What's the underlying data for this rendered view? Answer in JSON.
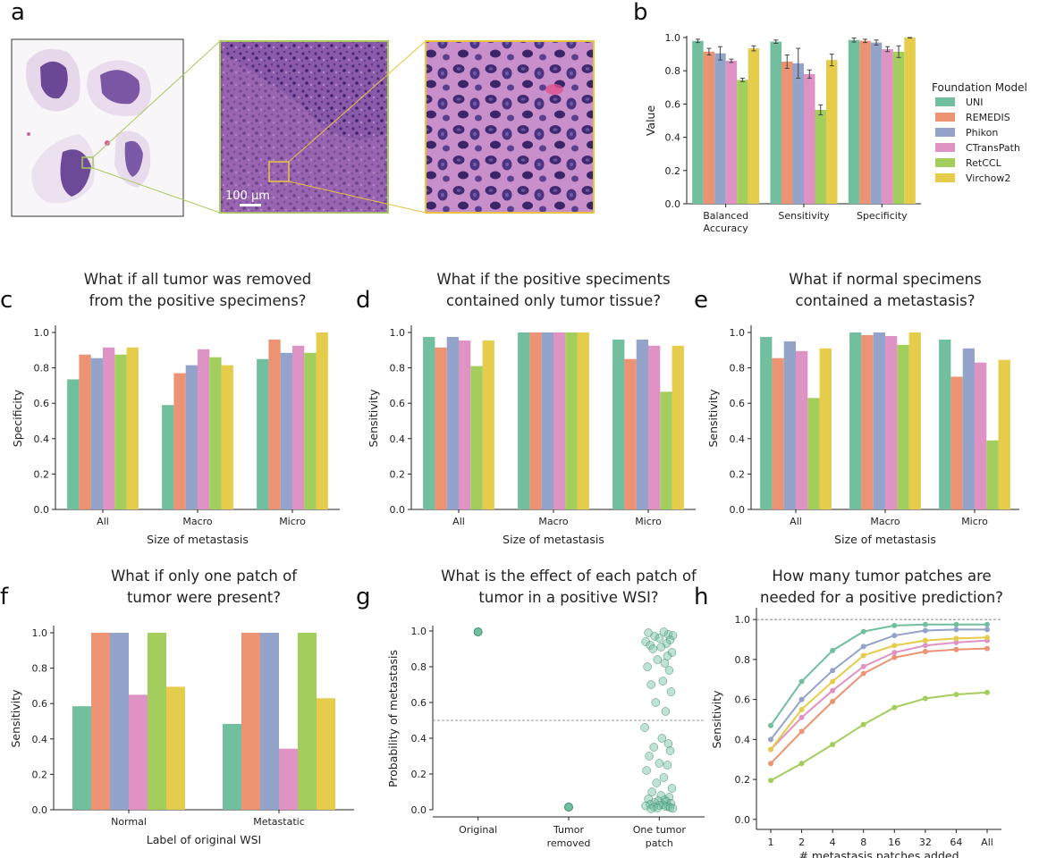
{
  "panel_labels": {
    "a": "a",
    "b": "b",
    "c": "c",
    "d": "d",
    "e": "e",
    "f": "f",
    "g": "g",
    "h": "h"
  },
  "colors": {
    "UNI": "#72bfa0",
    "REMEDIS": "#eb9373",
    "Phikon": "#93a3c9",
    "CTransPath": "#df93c5",
    "RetCCL": "#a3cd5c",
    "Virchow2": "#e6cc4b",
    "tissue_inset_border": "#a8c95e",
    "zoom_inset_border": "#e8c441"
  },
  "histology": {
    "scale_bar_label": "100 µm"
  },
  "legend": {
    "title": "Foundation Model",
    "entries": [
      "UNI",
      "REMEDIS",
      "Phikon",
      "CTransPath",
      "RetCCL",
      "Virchow2"
    ]
  },
  "chart_data": [
    {
      "id": "b",
      "type": "bar",
      "title": "",
      "categories": [
        "Balanced Accuracy",
        "Sensitivity",
        "Specificity"
      ],
      "xlabel": "",
      "ylabel": "Value",
      "ylim": [
        0,
        1.0
      ],
      "yticks": [
        "0.0",
        "0.2",
        "0.4",
        "0.6",
        "0.8",
        "1.0"
      ],
      "series": [
        {
          "name": "UNI",
          "values": [
            0.98,
            0.975,
            0.985
          ],
          "errors": [
            0.01,
            0.01,
            0.012
          ]
        },
        {
          "name": "REMEDIS",
          "values": [
            0.915,
            0.855,
            0.98
          ],
          "errors": [
            0.02,
            0.04,
            0.01
          ]
        },
        {
          "name": "Phikon",
          "values": [
            0.905,
            0.845,
            0.97
          ],
          "errors": [
            0.04,
            0.09,
            0.015
          ]
        },
        {
          "name": "CTransPath",
          "values": [
            0.86,
            0.78,
            0.93
          ],
          "errors": [
            0.01,
            0.025,
            0.015
          ]
        },
        {
          "name": "RetCCL",
          "values": [
            0.745,
            0.565,
            0.915
          ],
          "errors": [
            0.01,
            0.03,
            0.035
          ]
        },
        {
          "name": "Virchow2",
          "values": [
            0.935,
            0.865,
            1.0
          ],
          "errors": [
            0.015,
            0.035,
            0.003
          ]
        }
      ]
    },
    {
      "id": "c",
      "type": "bar",
      "title_lines": [
        "What if all tumor was removed",
        "from the positive specimens?"
      ],
      "categories": [
        "All",
        "Macro",
        "Micro"
      ],
      "xlabel": "Size of metastasis",
      "ylabel": "Specificity",
      "ylim": [
        0,
        1.0
      ],
      "yticks": [
        "0.0",
        "0.2",
        "0.4",
        "0.6",
        "0.8",
        "1.0"
      ],
      "series": [
        {
          "name": "UNI",
          "values": [
            0.735,
            0.59,
            0.85
          ]
        },
        {
          "name": "REMEDIS",
          "values": [
            0.875,
            0.77,
            0.96
          ]
        },
        {
          "name": "Phikon",
          "values": [
            0.855,
            0.815,
            0.885
          ]
        },
        {
          "name": "CTransPath",
          "values": [
            0.915,
            0.905,
            0.925
          ]
        },
        {
          "name": "RetCCL",
          "values": [
            0.875,
            0.86,
            0.885
          ]
        },
        {
          "name": "Virchow2",
          "values": [
            0.915,
            0.815,
            1.0
          ]
        }
      ]
    },
    {
      "id": "d",
      "type": "bar",
      "title_lines": [
        "What if the positive speciments",
        "contained only tumor tissue?"
      ],
      "categories": [
        "All",
        "Macro",
        "Micro"
      ],
      "xlabel": "Size of metastasis",
      "ylabel": "Sensitivity",
      "ylim": [
        0,
        1.0
      ],
      "yticks": [
        "0.0",
        "0.2",
        "0.4",
        "0.6",
        "0.8",
        "1.0"
      ],
      "series": [
        {
          "name": "UNI",
          "values": [
            0.975,
            1.0,
            0.96
          ]
        },
        {
          "name": "REMEDIS",
          "values": [
            0.915,
            1.0,
            0.85
          ]
        },
        {
          "name": "Phikon",
          "values": [
            0.975,
            1.0,
            0.96
          ]
        },
        {
          "name": "CTransPath",
          "values": [
            0.955,
            1.0,
            0.925
          ]
        },
        {
          "name": "RetCCL",
          "values": [
            0.81,
            1.0,
            0.665
          ]
        },
        {
          "name": "Virchow2",
          "values": [
            0.955,
            1.0,
            0.925
          ]
        }
      ]
    },
    {
      "id": "e",
      "type": "bar",
      "title_lines": [
        "What if normal specimens",
        "contained a metastasis?"
      ],
      "categories": [
        "All",
        "Macro",
        "Micro"
      ],
      "xlabel": "Size of metastasis",
      "ylabel": "Sensitivity",
      "ylim": [
        0,
        1.0
      ],
      "yticks": [
        "0.0",
        "0.2",
        "0.4",
        "0.6",
        "0.8",
        "1.0"
      ],
      "series": [
        {
          "name": "UNI",
          "values": [
            0.975,
            1.0,
            0.96
          ]
        },
        {
          "name": "REMEDIS",
          "values": [
            0.855,
            0.985,
            0.75
          ]
        },
        {
          "name": "Phikon",
          "values": [
            0.95,
            1.0,
            0.91
          ]
        },
        {
          "name": "CTransPath",
          "values": [
            0.895,
            0.98,
            0.83
          ]
        },
        {
          "name": "RetCCL",
          "values": [
            0.63,
            0.93,
            0.39
          ]
        },
        {
          "name": "Virchow2",
          "values": [
            0.91,
            1.0,
            0.845
          ]
        }
      ]
    },
    {
      "id": "f",
      "type": "bar",
      "title_lines": [
        "What if only one patch of",
        "tumor were present?"
      ],
      "categories": [
        "Normal",
        "Metastatic"
      ],
      "xlabel": "Label of original WSI",
      "ylabel": "Sensitivity",
      "ylim": [
        0,
        1.0
      ],
      "yticks": [
        "0.0",
        "0.2",
        "0.4",
        "0.6",
        "0.8",
        "1.0"
      ],
      "series": [
        {
          "name": "UNI",
          "values": [
            0.585,
            0.485
          ]
        },
        {
          "name": "REMEDIS",
          "values": [
            1.0,
            1.0
          ]
        },
        {
          "name": "Phikon",
          "values": [
            1.0,
            1.0
          ]
        },
        {
          "name": "CTransPath",
          "values": [
            0.65,
            0.345
          ]
        },
        {
          "name": "RetCCL",
          "values": [
            1.0,
            1.0
          ]
        },
        {
          "name": "Virchow2",
          "values": [
            0.695,
            0.63
          ]
        }
      ]
    },
    {
      "id": "g",
      "type": "scatter",
      "title_lines": [
        "What is the effect of each patch of",
        "tumor in a positive WSI?"
      ],
      "categories": [
        "Original",
        "Tumor removed",
        "One tumor patch"
      ],
      "category_lines": [
        [
          "Original"
        ],
        [
          "Tumor",
          "removed"
        ],
        [
          "One tumor",
          "patch"
        ]
      ],
      "xlabel": "",
      "ylabel": "Probability of metastasis",
      "ylim": [
        0,
        1.0
      ],
      "yticks": [
        "0.0",
        "0.2",
        "0.4",
        "0.6",
        "0.8",
        "1.0"
      ],
      "threshold": 0.5,
      "points": [
        {
          "category": "Original",
          "jitter": [
            0
          ],
          "y": [
            0.995
          ]
        },
        {
          "category": "Tumor removed",
          "jitter": [
            0
          ],
          "y": [
            0.015
          ]
        },
        {
          "category": "One tumor patch",
          "jitter": [
            0.05,
            -0.12,
            0.1,
            0.15,
            -0.05,
            0.0,
            0.12,
            -0.15,
            0.08,
            -0.1,
            0.02,
            -0.07,
            0.14,
            0.09,
            -0.02,
            0.06,
            -0.13,
            0.11,
            0.04,
            -0.09,
            0.13,
            -0.04,
            0.07,
            -0.16,
            0.03,
            0.1,
            -0.06,
            0.12,
            -0.11,
            0.0,
            0.09,
            -0.14,
            0.05,
            -0.03,
            0.14,
            -0.08,
            0.02,
            0.11,
            -0.12,
            0.06,
            -0.01,
            0.08,
            -0.05,
            0.13,
            -0.1,
            0.04,
            0.0,
            -0.15,
            0.1,
            0.07,
            -0.06,
            0.12,
            -0.02,
            0.15,
            -0.09
          ],
          "y": [
            0.995,
            0.99,
            0.98,
            0.975,
            0.97,
            0.96,
            0.95,
            0.94,
            0.93,
            0.92,
            0.91,
            0.9,
            0.88,
            0.86,
            0.84,
            0.82,
            0.8,
            0.78,
            0.72,
            0.7,
            0.66,
            0.6,
            0.55,
            0.46,
            0.4,
            0.37,
            0.35,
            0.33,
            0.3,
            0.26,
            0.25,
            0.22,
            0.18,
            0.15,
            0.12,
            0.1,
            0.08,
            0.07,
            0.06,
            0.055,
            0.05,
            0.045,
            0.04,
            0.035,
            0.03,
            0.028,
            0.025,
            0.022,
            0.02,
            0.018,
            0.015,
            0.012,
            0.01,
            0.008,
            0.005
          ]
        }
      ]
    },
    {
      "id": "h",
      "type": "line",
      "title_lines": [
        "How many tumor patches are",
        "needed for a positive prediction?"
      ],
      "x": [
        "1",
        "2",
        "4",
        "8",
        "16",
        "32",
        "64",
        "All"
      ],
      "xlabel": "# metastasis patches added",
      "ylabel": "Sensitivity",
      "ylim": [
        -0.05,
        1.05
      ],
      "yticks": [
        "0.0",
        "0.2",
        "0.4",
        "0.6",
        "0.8",
        "1.0"
      ],
      "threshold": 1.0,
      "series": [
        {
          "name": "UNI",
          "values": [
            0.47,
            0.69,
            0.845,
            0.94,
            0.97,
            0.975,
            0.975,
            0.975
          ]
        },
        {
          "name": "REMEDIS",
          "values": [
            0.28,
            0.44,
            0.59,
            0.73,
            0.81,
            0.84,
            0.85,
            0.855
          ]
        },
        {
          "name": "Phikon",
          "values": [
            0.4,
            0.6,
            0.745,
            0.865,
            0.92,
            0.945,
            0.95,
            0.95
          ]
        },
        {
          "name": "CTransPath",
          "values": [
            0.35,
            0.51,
            0.645,
            0.765,
            0.835,
            0.87,
            0.885,
            0.895
          ]
        },
        {
          "name": "RetCCL",
          "values": [
            0.195,
            0.28,
            0.375,
            0.475,
            0.56,
            0.605,
            0.625,
            0.635
          ]
        },
        {
          "name": "Virchow2",
          "values": [
            0.35,
            0.55,
            0.69,
            0.82,
            0.87,
            0.895,
            0.905,
            0.91
          ]
        }
      ]
    }
  ]
}
